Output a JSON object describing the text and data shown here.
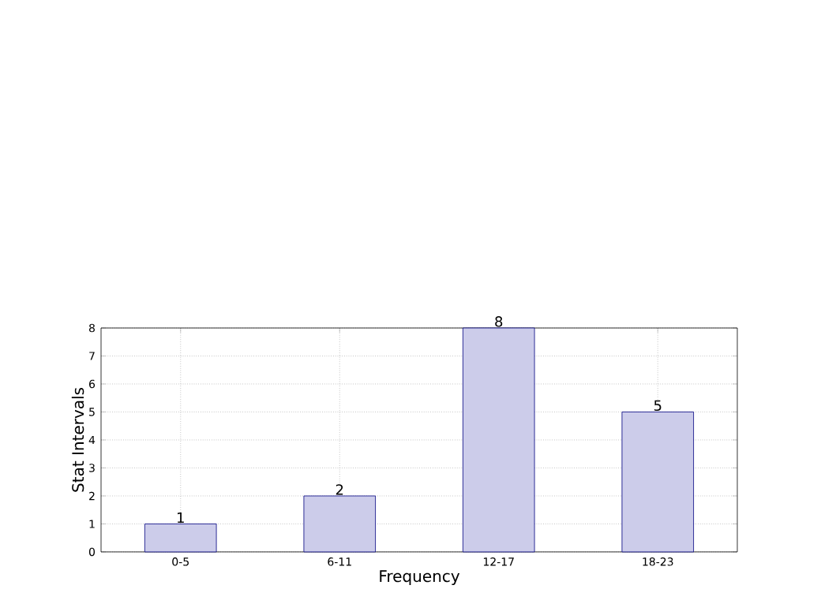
{
  "chart_data": {
    "type": "bar",
    "categories": [
      "0-5",
      "6-11",
      "12-17",
      "18-23"
    ],
    "values": [
      1,
      2,
      8,
      5
    ],
    "color": "#ccccea",
    "xlabel": "Frequency",
    "ylabel": "Stat Intervals",
    "ylim": [
      0,
      8
    ],
    "yticks": [
      0,
      1,
      2,
      3,
      4,
      5,
      6,
      7,
      8
    ],
    "grid": true,
    "data_labels": true
  }
}
